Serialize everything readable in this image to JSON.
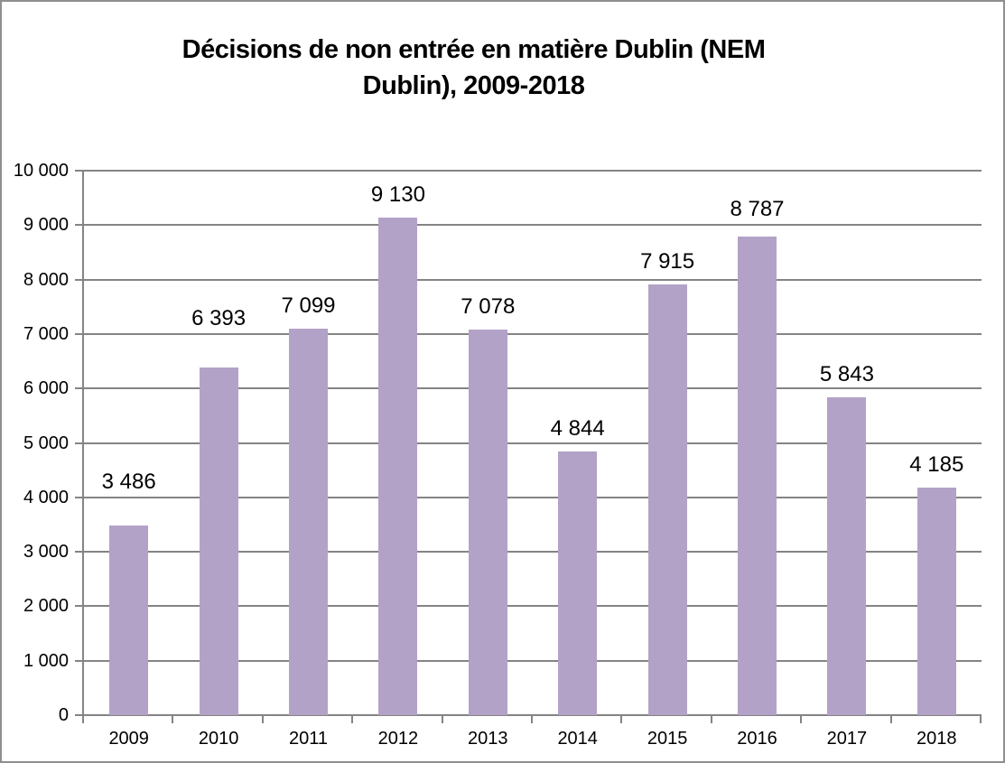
{
  "chart_data": {
    "type": "bar",
    "title": "Décisions de non entrée en matière Dublin (NEM Dublin), 2009-2018",
    "title_lines": [
      "Décisions de non entrée en matière Dublin (NEM",
      "Dublin), 2009-2018"
    ],
    "categories": [
      "2009",
      "2010",
      "2011",
      "2012",
      "2013",
      "2014",
      "2015",
      "2016",
      "2017",
      "2018"
    ],
    "values": [
      3486,
      6393,
      7099,
      9130,
      7078,
      4844,
      7915,
      8787,
      5843,
      4185
    ],
    "data_labels": [
      "3 486",
      "6 393",
      "7 099",
      "9 130",
      "7 078",
      "4 844",
      "7 915",
      "8 787",
      "5 843",
      "4 185"
    ],
    "xlabel": "",
    "ylabel": "",
    "y_axis": {
      "min": 0,
      "max": 10000,
      "step": 1000,
      "tick_labels": [
        "0",
        "1 000",
        "2 000",
        "3 000",
        "4 000",
        "5 000",
        "6 000",
        "7 000",
        "8 000",
        "9 000",
        "10 000"
      ]
    },
    "grid": true,
    "legend": "none",
    "colors": {
      "bar_fill": "#B3A2C7",
      "gridline": "#848484",
      "axis_line": "#848484",
      "text": "#000000",
      "background": "#FFFFFF",
      "chart_border": "#8F8F8F"
    }
  }
}
